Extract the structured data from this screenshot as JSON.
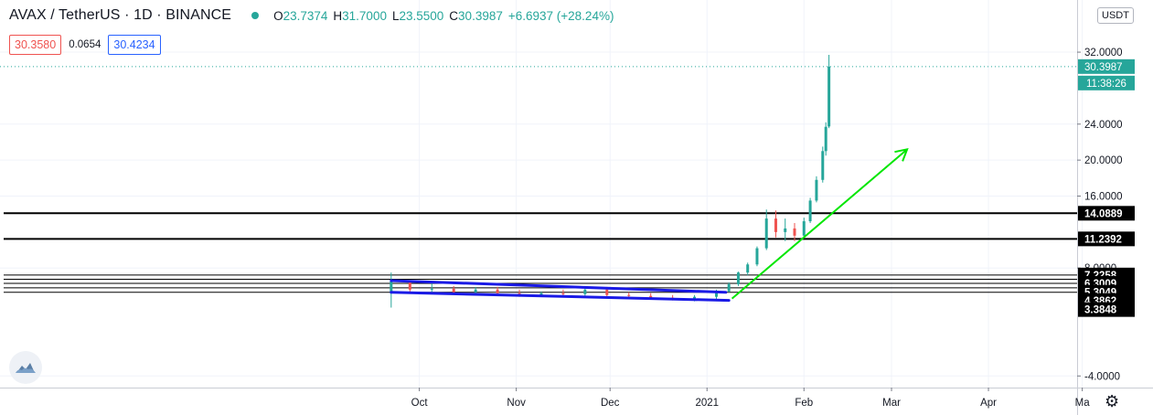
{
  "header": {
    "symbol": "AVAX / TetherUS · 1D · BINANCE",
    "open_label": "O",
    "open": "23.7374",
    "high_label": "H",
    "high": "31.7000",
    "low_label": "L",
    "low": "23.5500",
    "close_label": "C",
    "close": "30.3987",
    "change": "+6.6937 (+28.24%)"
  },
  "bidask": {
    "bid": "30.3580",
    "spread": "0.0654",
    "ask": "30.4234"
  },
  "currency": "USDT",
  "colors": {
    "up": "#26a69a",
    "down": "#ef5350",
    "channel": "#1a1ae6",
    "arrow": "#00e600",
    "level": "#000000",
    "price_label": "#26a69a"
  },
  "icons": {
    "logo": "tradingview-cloud-icon",
    "settings": "gear-icon"
  },
  "chart_data": {
    "type": "candlestick",
    "symbol": "AVAX / TetherUS",
    "interval": "1D",
    "exchange": "BINANCE",
    "ylim": [
      -5,
      34
    ],
    "y_ticks": [
      {
        "value": 32,
        "label": "32.0000"
      },
      {
        "value": 24,
        "label": "24.0000"
      },
      {
        "value": 20,
        "label": "20.0000"
      },
      {
        "value": 16,
        "label": "16.0000"
      },
      {
        "value": 8,
        "label": "8.0000"
      },
      {
        "value": -4,
        "label": "-4.0000"
      }
    ],
    "x_ticks": [
      "Oct",
      "Nov",
      "Dec",
      "2021",
      "Feb",
      "Mar",
      "Apr",
      "Ma"
    ],
    "horizontal_levels": [
      {
        "value": 14.0889,
        "label": "14.0889",
        "style": "thick"
      },
      {
        "value": 11.2392,
        "label": "11.2392",
        "style": "thick"
      },
      {
        "value": 7.2258,
        "label": "7.2258",
        "style": "thin"
      },
      {
        "value": 6.3009,
        "label": "6.3009",
        "style": "thin"
      },
      {
        "value": 5.3049,
        "label": "5.3049",
        "style": "thin"
      },
      {
        "value": 4.3862,
        "label": "4.3862",
        "style": "none"
      },
      {
        "value": 3.3848,
        "label": "3.3848",
        "style": "none"
      }
    ],
    "extra_levels": [
      6.75,
      5.8
    ],
    "last_price": {
      "value": 30.3987,
      "label": "30.3987",
      "countdown": "11:38:26"
    },
    "channel": {
      "upper": [
        [
          "2020-09-22",
          6.6
        ],
        [
          "2021-01-07",
          5.3
        ]
      ],
      "lower": [
        [
          "2020-09-22",
          5.3
        ],
        [
          "2021-01-08",
          4.4
        ]
      ]
    },
    "trend_arrow": [
      [
        "2021-01-09",
        4.6
      ],
      [
        "2021-03-06",
        21.2
      ]
    ],
    "candles": [
      {
        "t": "2020-09-22",
        "o": 5.3,
        "h": 7.5,
        "l": 3.6,
        "c": 6.5
      },
      {
        "t": "2020-09-28",
        "o": 6.5,
        "h": 6.6,
        "l": 5.3,
        "c": 5.6
      },
      {
        "t": "2020-10-05",
        "o": 5.6,
        "h": 6.3,
        "l": 5.2,
        "c": 5.7
      },
      {
        "t": "2020-10-12",
        "o": 5.7,
        "h": 6.0,
        "l": 5.1,
        "c": 5.3
      },
      {
        "t": "2020-10-19",
        "o": 5.3,
        "h": 5.9,
        "l": 5.0,
        "c": 5.6
      },
      {
        "t": "2020-10-26",
        "o": 5.6,
        "h": 5.9,
        "l": 5.0,
        "c": 5.2
      },
      {
        "t": "2020-11-02",
        "o": 5.2,
        "h": 5.6,
        "l": 4.8,
        "c": 5.0
      },
      {
        "t": "2020-11-09",
        "o": 5.0,
        "h": 5.4,
        "l": 4.8,
        "c": 5.2
      },
      {
        "t": "2020-11-16",
        "o": 5.2,
        "h": 5.6,
        "l": 4.9,
        "c": 5.1
      },
      {
        "t": "2020-11-23",
        "o": 5.1,
        "h": 6.0,
        "l": 4.8,
        "c": 5.6
      },
      {
        "t": "2020-11-30",
        "o": 5.6,
        "h": 5.9,
        "l": 4.8,
        "c": 5.0
      },
      {
        "t": "2020-12-07",
        "o": 5.0,
        "h": 5.3,
        "l": 4.6,
        "c": 4.9
      },
      {
        "t": "2020-12-14",
        "o": 4.9,
        "h": 5.2,
        "l": 4.5,
        "c": 4.7
      },
      {
        "t": "2020-12-21",
        "o": 4.7,
        "h": 5.0,
        "l": 4.4,
        "c": 4.6
      },
      {
        "t": "2020-12-28",
        "o": 4.6,
        "h": 5.0,
        "l": 4.3,
        "c": 4.8
      },
      {
        "t": "2021-01-04",
        "o": 4.8,
        "h": 5.6,
        "l": 4.5,
        "c": 5.4
      },
      {
        "t": "2021-01-08",
        "o": 5.4,
        "h": 6.4,
        "l": 5.3,
        "c": 6.2
      },
      {
        "t": "2021-01-11",
        "o": 6.2,
        "h": 7.6,
        "l": 6.0,
        "c": 7.5
      },
      {
        "t": "2021-01-14",
        "o": 7.5,
        "h": 8.6,
        "l": 7.2,
        "c": 8.4
      },
      {
        "t": "2021-01-17",
        "o": 8.4,
        "h": 10.4,
        "l": 8.2,
        "c": 10.2
      },
      {
        "t": "2021-01-20",
        "o": 10.2,
        "h": 14.5,
        "l": 10.0,
        "c": 13.5
      },
      {
        "t": "2021-01-23",
        "o": 13.5,
        "h": 14.4,
        "l": 11.4,
        "c": 12.0
      },
      {
        "t": "2021-01-26",
        "o": 12.0,
        "h": 13.5,
        "l": 11.0,
        "c": 12.4
      },
      {
        "t": "2021-01-29",
        "o": 12.4,
        "h": 13.0,
        "l": 11.0,
        "c": 11.6
      },
      {
        "t": "2021-02-01",
        "o": 11.6,
        "h": 13.6,
        "l": 11.4,
        "c": 13.2
      },
      {
        "t": "2021-02-03",
        "o": 13.2,
        "h": 15.8,
        "l": 13.0,
        "c": 15.5
      },
      {
        "t": "2021-02-05",
        "o": 15.5,
        "h": 18.2,
        "l": 15.3,
        "c": 17.8
      },
      {
        "t": "2021-02-07",
        "o": 17.8,
        "h": 21.5,
        "l": 17.5,
        "c": 21.0
      },
      {
        "t": "2021-02-08",
        "o": 21.0,
        "h": 24.2,
        "l": 20.5,
        "c": 23.7
      },
      {
        "t": "2021-02-09",
        "o": 23.7374,
        "h": 31.7,
        "l": 23.55,
        "c": 30.3987
      }
    ]
  }
}
